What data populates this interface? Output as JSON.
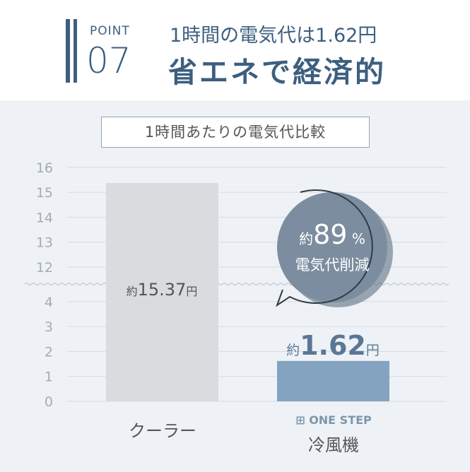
{
  "header": {
    "point_label": "POINT",
    "point_number": "07",
    "subtitle": "1時間の電気代は1.62円",
    "title": "省エネで経済的"
  },
  "chart_data": {
    "type": "bar",
    "title": "1時間あたりの電気代比較",
    "categories": [
      "クーラー",
      "冷風機"
    ],
    "category_brand": "ONE STEP",
    "values": [
      15.37,
      1.62
    ],
    "data_labels": [
      {
        "prefix": "約",
        "value": "15.37",
        "unit": "円"
      },
      {
        "prefix": "約",
        "value": "1.62",
        "unit": "円"
      }
    ],
    "yticks": [
      "0",
      "1",
      "2",
      "3",
      "4",
      "12",
      "13",
      "14",
      "15",
      "16"
    ],
    "ylim": [
      0,
      16
    ],
    "axis_break": [
      4,
      12
    ],
    "grid": true,
    "colors": [
      "#d9dcdf",
      "#84a3c0"
    ],
    "callout": {
      "prefix": "約",
      "value": "89",
      "unit": "%",
      "text": "電気代削減"
    }
  },
  "colors": {
    "accent": "#3d5f7f",
    "bubble": "#7b8d9f"
  }
}
